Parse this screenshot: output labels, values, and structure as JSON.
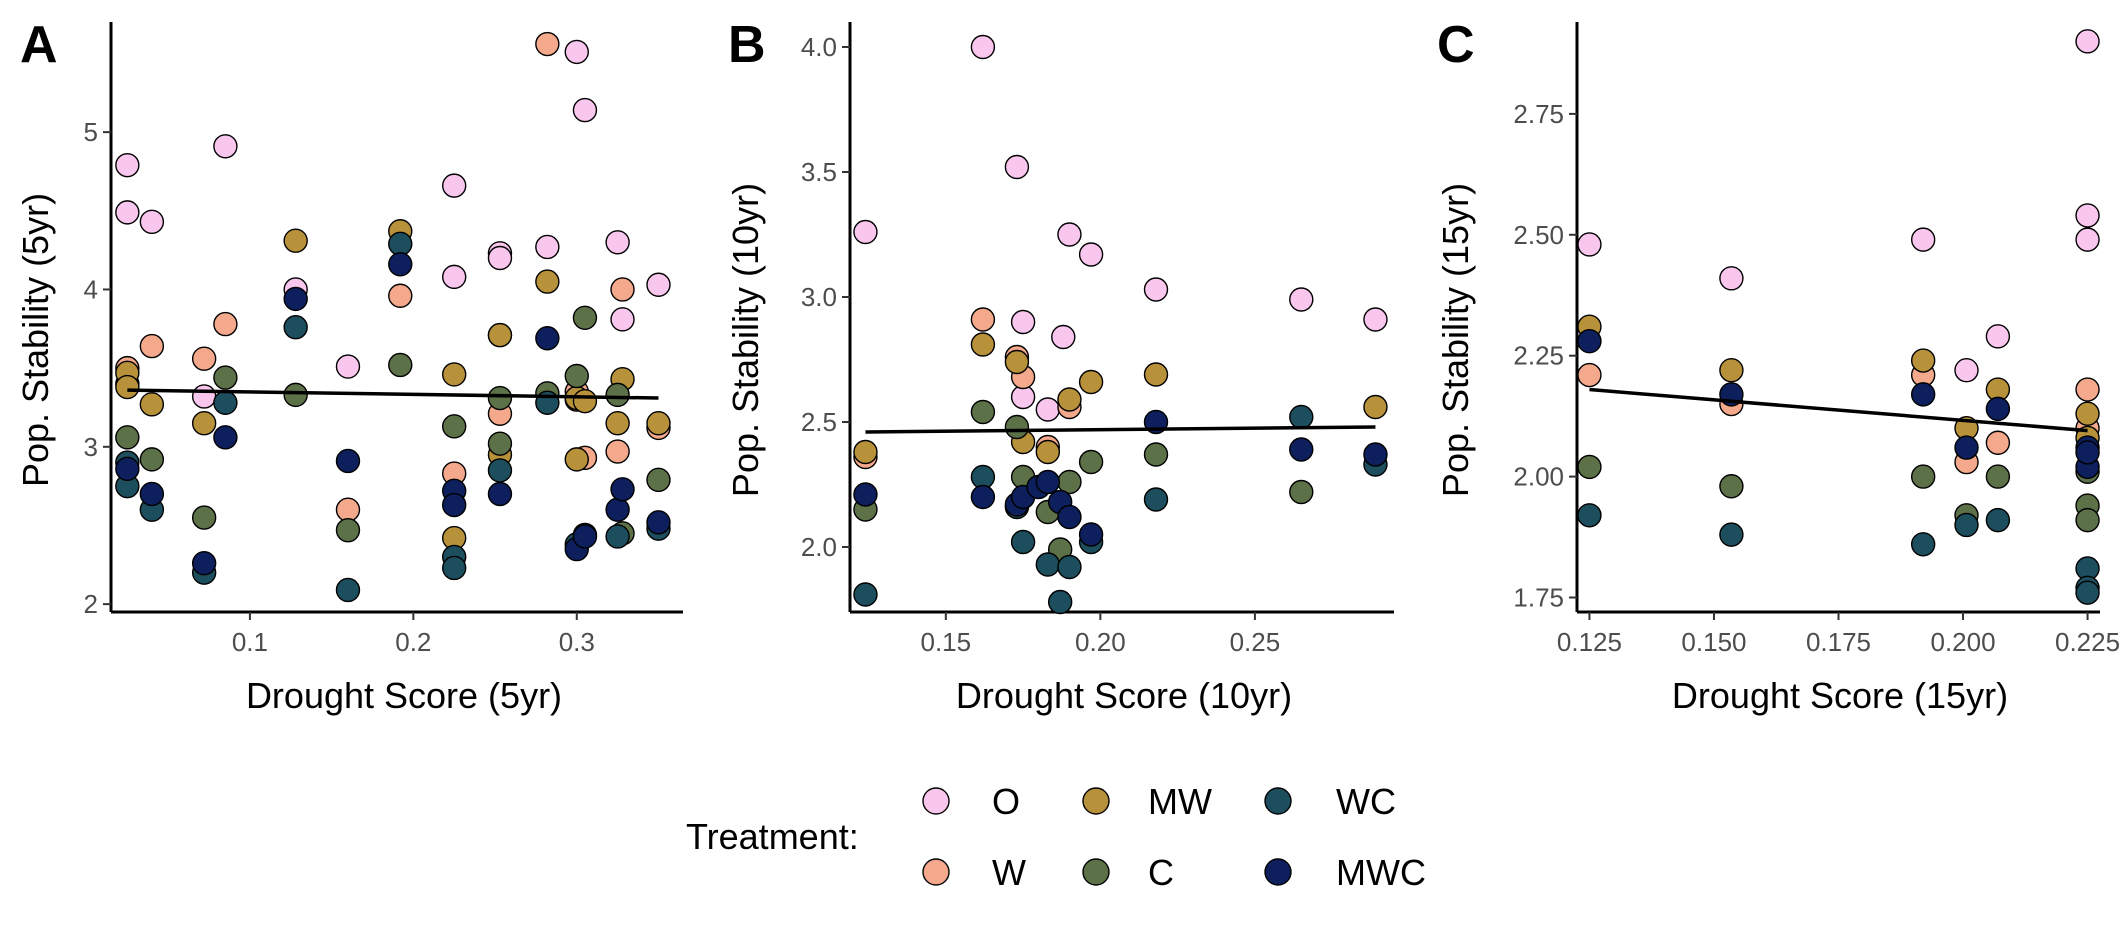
{
  "legend": {
    "title": "Treatment:",
    "items": [
      {
        "label": "O",
        "color": "#f9c6ee"
      },
      {
        "label": "W",
        "color": "#f4a98c"
      },
      {
        "label": "MW",
        "color": "#b8923b"
      },
      {
        "label": "C",
        "color": "#5d7149"
      },
      {
        "label": "WC",
        "color": "#1d4e5e"
      },
      {
        "label": "MWC",
        "color": "#0d1f5c"
      }
    ]
  },
  "chart_data": [
    {
      "type": "scatter",
      "panel_label": "A",
      "xlabel": "Drought Score (5yr)",
      "ylabel": "Pop. Stability (5yr)",
      "xlim": [
        0.015,
        0.365
      ],
      "ylim": [
        1.95,
        5.7
      ],
      "xticks": [
        0.1,
        0.2,
        0.3
      ],
      "xtick_labels": [
        "0.1",
        "0.2",
        "0.3"
      ],
      "yticks": [
        2,
        3,
        4,
        5
      ],
      "ytick_labels": [
        "2",
        "3",
        "4",
        "5"
      ],
      "trend_line": {
        "x": [
          0.025,
          0.35
        ],
        "y": [
          3.36,
          3.31
        ]
      },
      "series": [
        {
          "name": "O",
          "x": [
            0.025,
            0.025,
            0.04,
            0.072,
            0.085,
            0.128,
            0.16,
            0.225,
            0.225,
            0.253,
            0.253,
            0.282,
            0.3,
            0.305,
            0.325,
            0.328,
            0.35
          ],
          "y": [
            4.79,
            4.49,
            4.43,
            3.32,
            4.91,
            4.0,
            3.51,
            4.66,
            4.08,
            4.23,
            4.2,
            4.27,
            5.51,
            5.14,
            4.3,
            3.81,
            4.03
          ]
        },
        {
          "name": "W",
          "x": [
            0.025,
            0.025,
            0.04,
            0.072,
            0.085,
            0.16,
            0.192,
            0.225,
            0.253,
            0.253,
            0.282,
            0.3,
            0.3,
            0.305,
            0.325,
            0.328,
            0.35
          ],
          "y": [
            3.5,
            3.4,
            3.64,
            3.56,
            3.78,
            2.6,
            3.96,
            2.83,
            3.71,
            3.21,
            5.56,
            3.3,
            3.35,
            2.93,
            2.97,
            4.0,
            3.12
          ]
        },
        {
          "name": "MW",
          "x": [
            0.025,
            0.025,
            0.04,
            0.072,
            0.128,
            0.192,
            0.225,
            0.225,
            0.253,
            0.253,
            0.282,
            0.3,
            0.3,
            0.305,
            0.325,
            0.328,
            0.35
          ],
          "y": [
            3.47,
            3.38,
            3.27,
            3.15,
            4.31,
            4.37,
            3.46,
            2.42,
            3.71,
            2.95,
            4.05,
            3.31,
            2.92,
            3.29,
            3.15,
            3.43,
            3.15
          ]
        },
        {
          "name": "C",
          "x": [
            0.025,
            0.04,
            0.072,
            0.085,
            0.128,
            0.16,
            0.192,
            0.225,
            0.253,
            0.253,
            0.282,
            0.3,
            0.305,
            0.325,
            0.328,
            0.35
          ],
          "y": [
            3.06,
            2.92,
            2.55,
            3.44,
            3.33,
            2.47,
            3.52,
            3.13,
            3.31,
            3.02,
            3.34,
            3.45,
            3.82,
            3.33,
            2.45,
            2.79
          ]
        },
        {
          "name": "WC",
          "x": [
            0.025,
            0.025,
            0.04,
            0.072,
            0.085,
            0.128,
            0.16,
            0.192,
            0.225,
            0.225,
            0.253,
            0.282,
            0.3,
            0.305,
            0.325,
            0.35
          ],
          "y": [
            2.75,
            2.9,
            2.6,
            2.2,
            3.28,
            3.76,
            2.09,
            4.29,
            2.3,
            2.23,
            2.85,
            3.28,
            2.38,
            2.44,
            2.43,
            2.48
          ]
        },
        {
          "name": "MWC",
          "x": [
            0.025,
            0.04,
            0.072,
            0.085,
            0.128,
            0.16,
            0.192,
            0.225,
            0.225,
            0.253,
            0.282,
            0.3,
            0.305,
            0.325,
            0.328,
            0.35
          ],
          "y": [
            2.86,
            2.7,
            2.26,
            3.06,
            3.94,
            2.91,
            4.16,
            2.72,
            2.63,
            2.7,
            3.69,
            2.35,
            2.43,
            2.6,
            2.73,
            2.52
          ]
        }
      ]
    },
    {
      "type": "scatter",
      "panel_label": "B",
      "xlabel": "Drought Score (10yr)",
      "ylabel": "Pop. Stability (10yr)",
      "xlim": [
        0.119,
        0.295
      ],
      "ylim": [
        1.74,
        4.1
      ],
      "xticks": [
        0.15,
        0.2,
        0.25
      ],
      "xtick_labels": [
        "0.15",
        "0.20",
        "0.25"
      ],
      "yticks": [
        2.0,
        2.5,
        3.0,
        3.5,
        4.0
      ],
      "ytick_labels": [
        "2.0",
        "2.5",
        "3.0",
        "3.5",
        "4.0"
      ],
      "trend_line": {
        "x": [
          0.124,
          0.289
        ],
        "y": [
          2.46,
          2.48
        ]
      },
      "series": [
        {
          "name": "O",
          "x": [
            0.124,
            0.162,
            0.173,
            0.175,
            0.175,
            0.183,
            0.188,
            0.19,
            0.197,
            0.218,
            0.265,
            0.289
          ],
          "y": [
            3.26,
            4.0,
            3.52,
            2.9,
            2.6,
            2.55,
            2.84,
            3.25,
            3.17,
            3.03,
            2.99,
            2.91
          ]
        },
        {
          "name": "W",
          "x": [
            0.124,
            0.162,
            0.173,
            0.175,
            0.183,
            0.19
          ],
          "y": [
            2.36,
            2.91,
            2.76,
            2.68,
            2.4,
            2.56
          ]
        },
        {
          "name": "MW",
          "x": [
            0.124,
            0.162,
            0.173,
            0.175,
            0.183,
            0.19,
            0.197,
            0.218,
            0.289
          ],
          "y": [
            2.38,
            2.81,
            2.74,
            2.42,
            2.38,
            2.59,
            2.66,
            2.69,
            2.56
          ]
        },
        {
          "name": "C",
          "x": [
            0.124,
            0.162,
            0.173,
            0.175,
            0.183,
            0.187,
            0.19,
            0.197,
            0.218,
            0.265
          ],
          "y": [
            2.15,
            2.54,
            2.48,
            2.28,
            2.14,
            1.99,
            2.26,
            2.34,
            2.37,
            2.22
          ]
        },
        {
          "name": "WC",
          "x": [
            0.124,
            0.162,
            0.173,
            0.175,
            0.183,
            0.187,
            0.19,
            0.197,
            0.218,
            0.265,
            0.289
          ],
          "y": [
            1.81,
            2.28,
            2.16,
            2.02,
            1.93,
            1.78,
            1.92,
            2.02,
            2.19,
            2.52,
            2.33
          ]
        },
        {
          "name": "MWC",
          "x": [
            0.124,
            0.162,
            0.173,
            0.175,
            0.18,
            0.183,
            0.187,
            0.19,
            0.197,
            0.218,
            0.265,
            0.289
          ],
          "y": [
            2.21,
            2.2,
            2.17,
            2.2,
            2.24,
            2.26,
            2.18,
            2.12,
            2.05,
            2.5,
            2.39,
            2.37
          ]
        }
      ]
    },
    {
      "type": "scatter",
      "panel_label": "C",
      "xlabel": "Drought Score (15yr)",
      "ylabel": "Pop. Stability (15yr)",
      "xlim": [
        0.1225,
        0.2275
      ],
      "ylim": [
        1.72,
        2.94
      ],
      "xticks": [
        0.125,
        0.15,
        0.175,
        0.2,
        0.225
      ],
      "xtick_labels": [
        "0.125",
        "0.150",
        "0.175",
        "0.200",
        "0.225"
      ],
      "yticks": [
        1.75,
        2.0,
        2.25,
        2.5,
        2.75
      ],
      "ytick_labels": [
        "1.75",
        "2.00",
        "2.25",
        "2.50",
        "2.75"
      ],
      "trend_line": {
        "x": [
          0.125,
          0.225
        ],
        "y": [
          2.18,
          2.095
        ]
      },
      "series": [
        {
          "name": "O",
          "x": [
            0.125,
            0.1535,
            0.192,
            0.2007,
            0.207,
            0.225,
            0.225,
            0.225
          ],
          "y": [
            2.48,
            2.41,
            2.49,
            2.22,
            2.29,
            2.9,
            2.54,
            2.49
          ]
        },
        {
          "name": "W",
          "x": [
            0.125,
            0.1535,
            0.192,
            0.2007,
            0.207,
            0.225,
            0.225
          ],
          "y": [
            2.21,
            2.15,
            2.21,
            2.03,
            2.07,
            2.18,
            2.1
          ]
        },
        {
          "name": "MW",
          "x": [
            0.125,
            0.1535,
            0.192,
            0.2007,
            0.207,
            0.225,
            0.225
          ],
          "y": [
            2.31,
            2.22,
            2.24,
            2.1,
            2.18,
            2.13,
            2.08
          ]
        },
        {
          "name": "C",
          "x": [
            0.125,
            0.1535,
            0.192,
            0.2007,
            0.207,
            0.225,
            0.225,
            0.225
          ],
          "y": [
            2.02,
            1.98,
            2.0,
            1.92,
            2.0,
            2.01,
            1.94,
            1.91
          ]
        },
        {
          "name": "WC",
          "x": [
            0.125,
            0.1535,
            0.192,
            0.2007,
            0.207,
            0.225,
            0.225,
            0.225
          ],
          "y": [
            1.92,
            1.88,
            1.86,
            1.9,
            1.91,
            1.81,
            1.77,
            1.76
          ]
        },
        {
          "name": "MWC",
          "x": [
            0.125,
            0.1535,
            0.192,
            0.2007,
            0.207,
            0.225,
            0.225,
            0.225
          ],
          "y": [
            2.28,
            2.17,
            2.17,
            2.06,
            2.14,
            2.06,
            2.02,
            2.05
          ]
        }
      ]
    }
  ]
}
